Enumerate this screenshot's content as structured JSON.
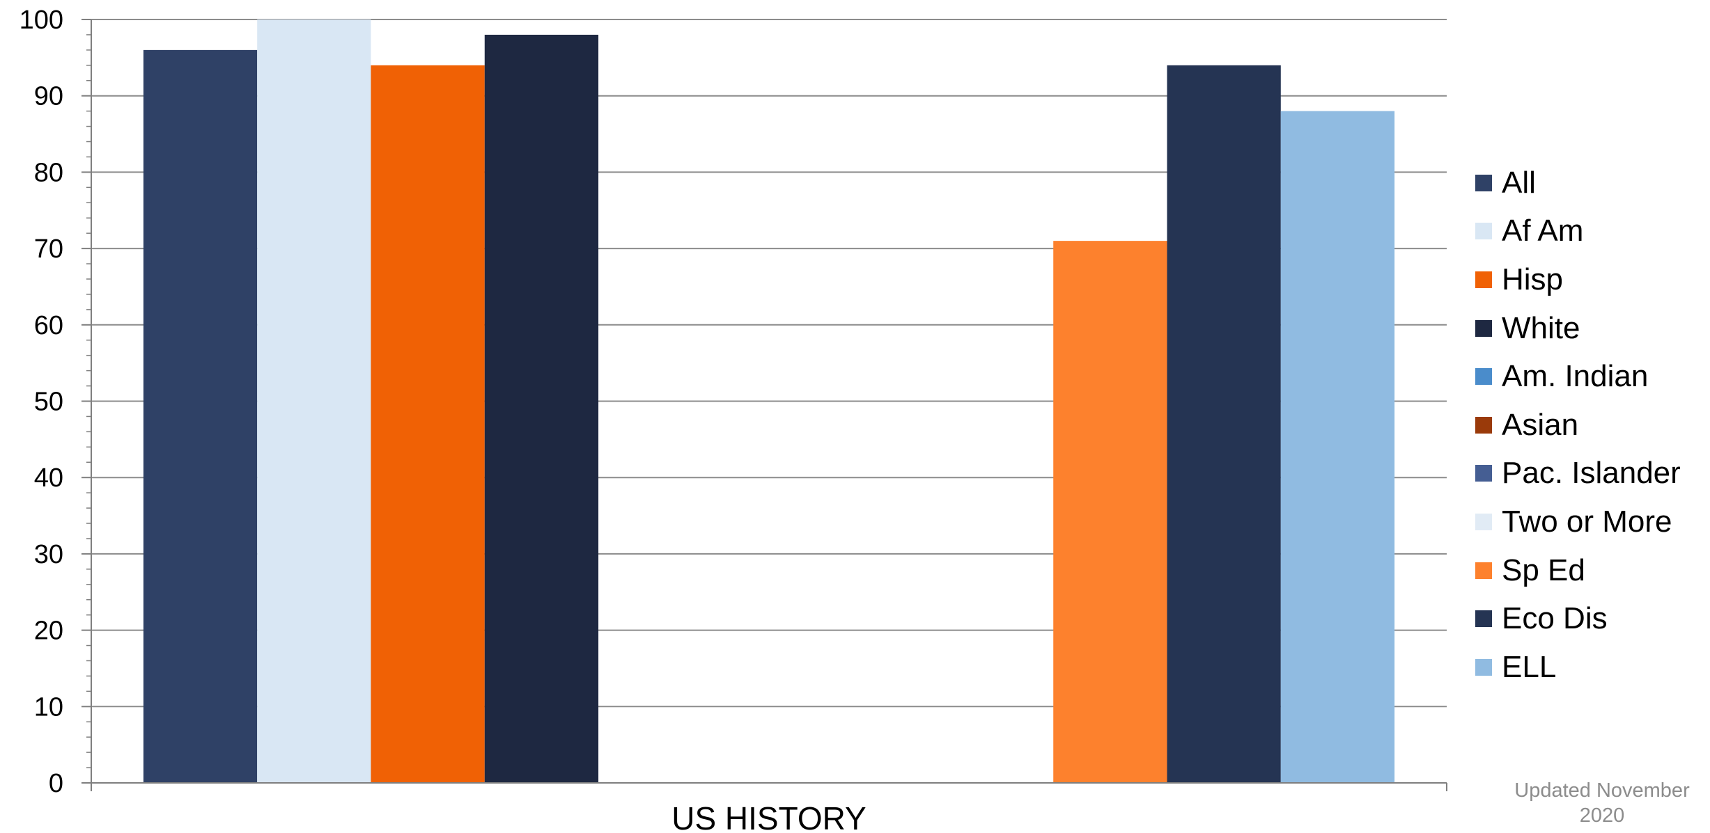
{
  "chart_data": {
    "type": "bar",
    "title": "",
    "xlabel": "",
    "ylabel": "",
    "ylim": [
      0,
      100
    ],
    "yticks": [
      0,
      10,
      20,
      30,
      40,
      50,
      60,
      70,
      80,
      90,
      100
    ],
    "grid": true,
    "legend_position": "right",
    "categories": [
      "US HISTORY"
    ],
    "series": [
      {
        "name": "All",
        "color": "#2f4166",
        "values": [
          96
        ]
      },
      {
        "name": "Af Am",
        "color": "#d9e7f4",
        "values": [
          100
        ]
      },
      {
        "name": "Hisp",
        "color": "#f06105",
        "values": [
          94
        ]
      },
      {
        "name": "White",
        "color": "#1e2841",
        "values": [
          98
        ]
      },
      {
        "name": "Am. Indian",
        "color": "#4a8ccb",
        "values": [
          null
        ]
      },
      {
        "name": "Asian",
        "color": "#9a3a0a",
        "values": [
          null
        ]
      },
      {
        "name": "Pac. Islander",
        "color": "#455e93",
        "values": [
          null
        ]
      },
      {
        "name": "Two or More",
        "color": "#e1ebf5",
        "values": [
          null
        ]
      },
      {
        "name": "Sp Ed",
        "color": "#fd812d",
        "values": [
          71
        ]
      },
      {
        "name": "Eco Dis",
        "color": "#253453",
        "values": [
          94
        ]
      },
      {
        "name": "ELL",
        "color": "#90bbe1",
        "values": [
          88
        ]
      }
    ]
  },
  "footnote": "Updated November\n2020"
}
